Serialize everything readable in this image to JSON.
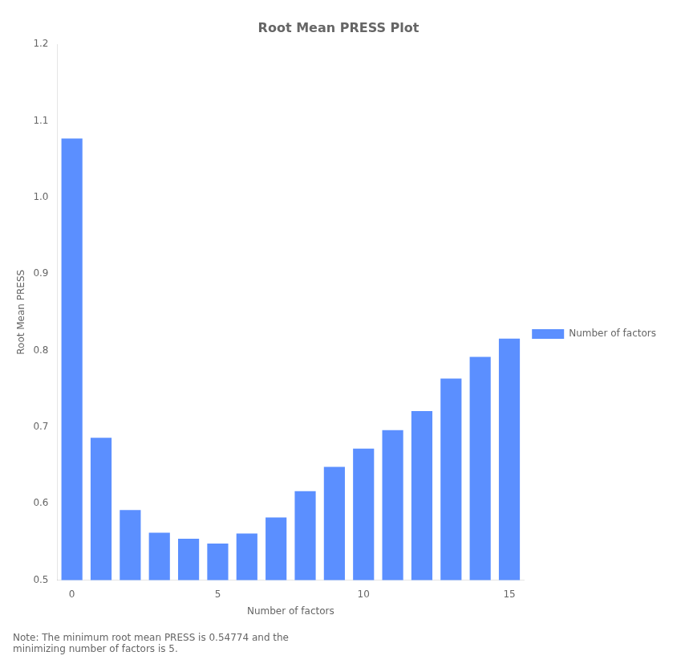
{
  "chart_data": {
    "type": "bar",
    "title": "Root Mean PRESS Plot",
    "categories": [
      "0",
      null,
      null,
      null,
      null,
      "5",
      null,
      null,
      null,
      null,
      "10",
      null,
      null,
      null,
      null,
      "15"
    ],
    "series": [
      {
        "name": "Number of factors",
        "color": "#5b8fff",
        "values": [
          1.076926,
          0.685794,
          0.591463,
          0.56173,
          0.553949,
          0.547744,
          0.56087,
          0.581726,
          0.616081,
          0.647871,
          0.671625,
          0.695867,
          0.720865,
          0.763351,
          0.791689,
          0.815424
        ]
      }
    ],
    "x_label": "Number of factors",
    "y_label": "Root Mean PRESS",
    "ylim": [
      0.5,
      1.2
    ],
    "yticks": [
      {
        "value": 0.5,
        "label": "0.5"
      },
      {
        "value": 0.6,
        "label": "0.6"
      },
      {
        "value": 0.7,
        "label": "0.7"
      },
      {
        "value": 0.8,
        "label": "0.8"
      },
      {
        "value": 0.9,
        "label": "0.9"
      },
      {
        "value": 1.0,
        "label": "1.0"
      },
      {
        "value": 1.1,
        "label": "1.1"
      },
      {
        "value": 1.2,
        "label": "1.2"
      }
    ],
    "grid": false,
    "legend": "right",
    "annotations": [
      "Note: The minimum root mean PRESS is 0.54774 and the\nminimizing number of factors is 5."
    ]
  }
}
